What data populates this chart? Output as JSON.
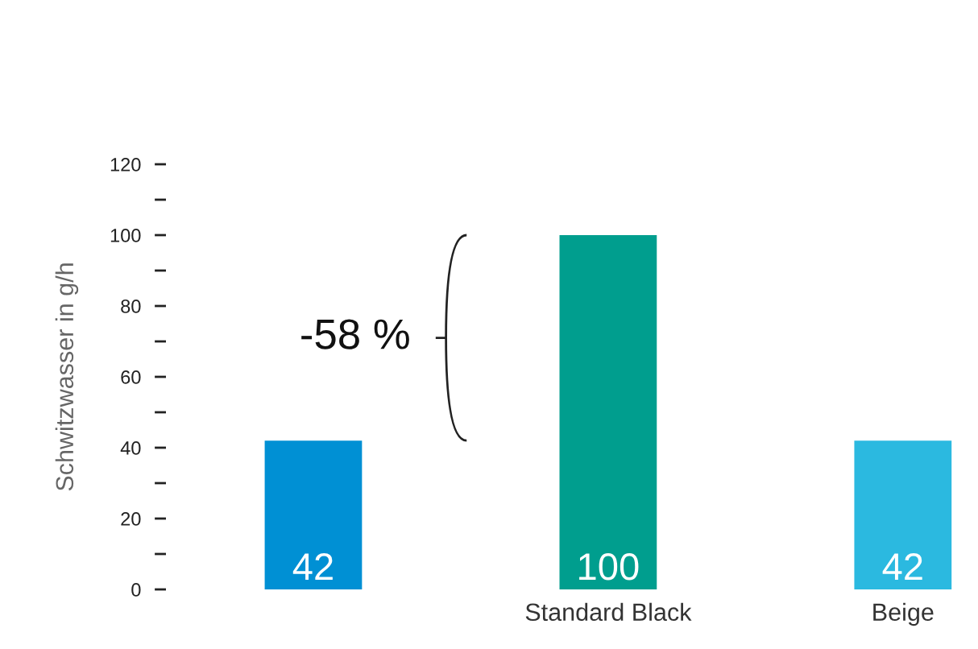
{
  "chart_data": {
    "type": "bar",
    "ylabel": "Schwitzwasser in g/h",
    "categories": [
      null,
      "Standard Black",
      "Beige"
    ],
    "values": [
      42,
      100,
      42
    ],
    "colors": [
      "#0090d4",
      "#009e8e",
      "#2bb9e0"
    ],
    "ylim": [
      0,
      120
    ],
    "yticks": [
      0,
      {
        "value": 10,
        "label": null
      },
      20,
      {
        "value": 30,
        "label": null
      },
      40,
      {
        "value": 50,
        "label": null
      },
      60,
      {
        "value": 70,
        "label": null
      },
      80,
      {
        "value": 90,
        "label": null
      },
      100,
      {
        "value": 110,
        "label": null
      },
      120
    ],
    "data_labels": true,
    "grid": false,
    "legend": false,
    "annotations": [
      "-58 %"
    ]
  }
}
